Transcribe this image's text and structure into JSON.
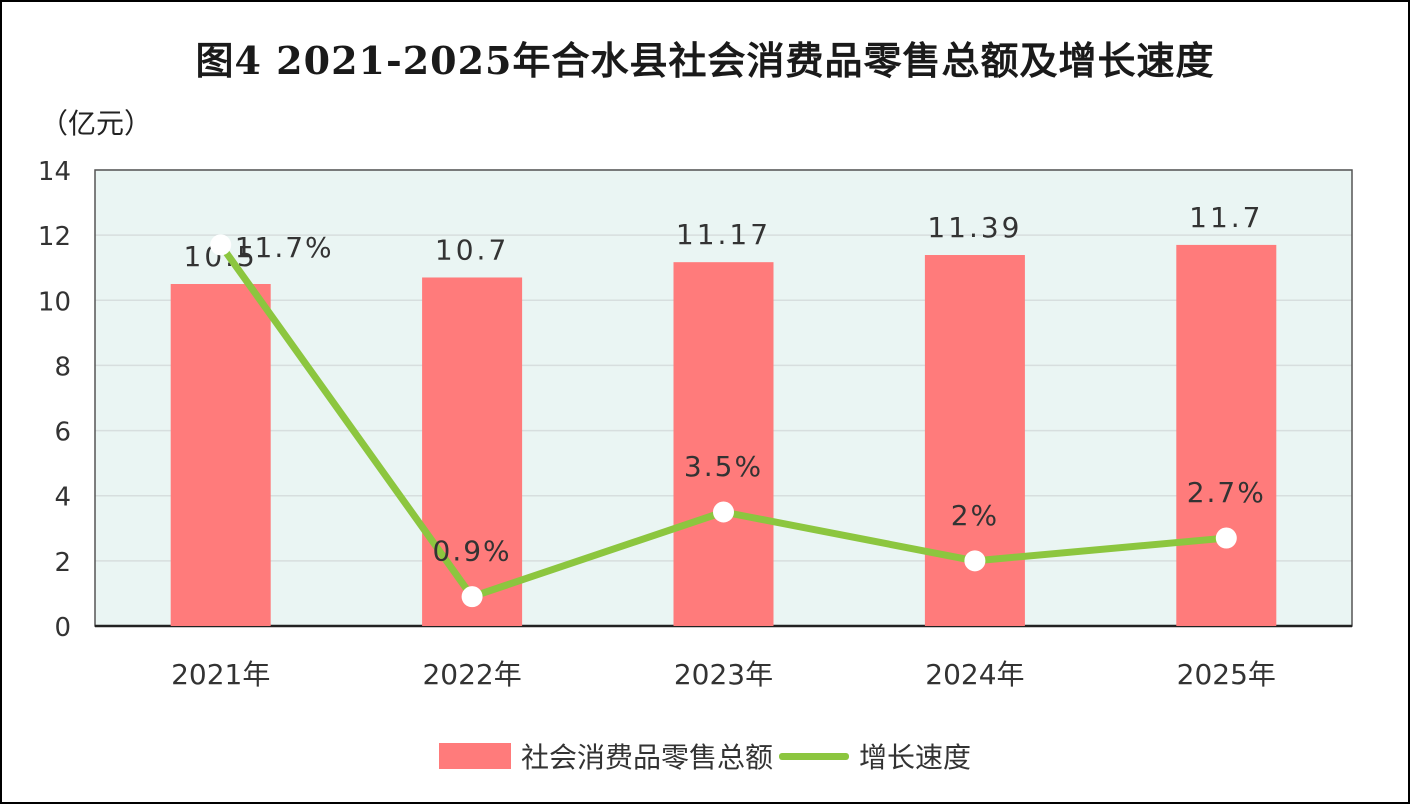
{
  "title": "图4 2021-2025年合水县社会消费品零售总额及增长速度",
  "unit_label": "（亿元）",
  "colors": {
    "bar": "#ff7b7b",
    "line": "#8cc63f",
    "plot_bg": "#eaf5f3",
    "grid": "#d7dede",
    "marker": "#ffffff"
  },
  "chart_data": {
    "type": "bar",
    "title": "图4 2021-2025年合水县社会消费品零售总额及增长速度",
    "ylabel": "（亿元）",
    "xlabel": "",
    "categories": [
      "2021年",
      "2022年",
      "2023年",
      "2024年",
      "2025年"
    ],
    "ylim": [
      0,
      14
    ],
    "yticks": [
      0,
      2,
      4,
      6,
      8,
      10,
      12,
      14
    ],
    "grid": true,
    "legend_position": "bottom",
    "series": [
      {
        "name": "社会消费品零售总额",
        "type": "bar",
        "values": [
          10.5,
          10.7,
          11.17,
          11.39,
          11.7
        ],
        "labels": [
          "10.5",
          "10.7",
          "11.17",
          "11.39",
          "11.7"
        ]
      },
      {
        "name": "增长速度",
        "type": "line",
        "values": [
          11.7,
          0.9,
          3.5,
          2,
          2.7
        ],
        "labels": [
          "11.7%",
          "0.9%",
          "3.5%",
          "2%",
          "2.7%"
        ]
      }
    ]
  }
}
